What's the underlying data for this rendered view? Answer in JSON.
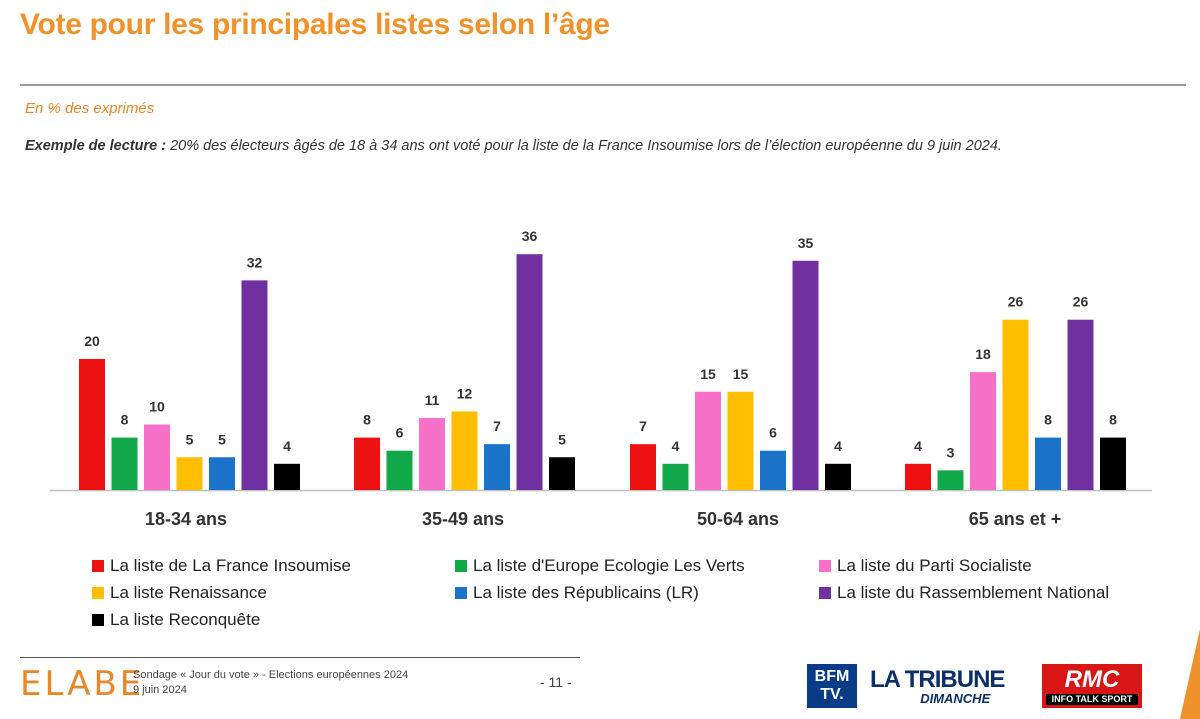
{
  "header": {
    "title": "Vote pour les principales listes selon l’âge",
    "subtitle": "En % des exprimés",
    "reading_label": "Exemple de lecture :",
    "reading_text": "20% des électeurs âgés de 18 à 34 ans ont voté pour la liste de la France Insoumise lors de l’élection européenne du 9 juin 2024."
  },
  "chart_data": {
    "type": "bar",
    "title": "Vote pour les principales listes selon l’âge",
    "subtitle": "En % des exprimés",
    "categories": [
      "18-34 ans",
      "35-49 ans",
      "50-64 ans",
      "65 ans et +"
    ],
    "series": [
      {
        "name": "La liste de La France Insoumise",
        "color": "#ee1111",
        "values": [
          20,
          8,
          7,
          4
        ]
      },
      {
        "name": "La liste d'Europe Ecologie Les Verts",
        "color": "#11a84a",
        "values": [
          8,
          6,
          4,
          3
        ]
      },
      {
        "name": "La liste du Parti Socialiste",
        "color": "#f771c8",
        "values": [
          10,
          11,
          15,
          18
        ]
      },
      {
        "name": "La liste Renaissance",
        "color": "#ffbf00",
        "values": [
          5,
          12,
          15,
          26
        ]
      },
      {
        "name": "La liste des Républicains (LR)",
        "color": "#1a73c9",
        "values": [
          5,
          7,
          6,
          8
        ]
      },
      {
        "name": "La liste du Rassemblement National",
        "color": "#7030a0",
        "values": [
          32,
          36,
          35,
          26
        ]
      },
      {
        "name": "La liste Reconquête",
        "color": "#000000",
        "values": [
          4,
          5,
          4,
          8
        ]
      }
    ],
    "ylim": [
      0,
      40
    ],
    "grid": false,
    "legend": "bottom"
  },
  "footer": {
    "brand": "ELABE",
    "line1": "Sondage « Jour du vote » - Elections européennes 2024",
    "line2": "9 juin 2024",
    "page": "- 11 -",
    "logos": {
      "bfm_1": "BFM",
      "bfm_2": "TV.",
      "tribune_1": "LA TRIBUNE",
      "tribune_2": "DIMANCHE",
      "rmc_1": "RMC",
      "rmc_2": "INFO TALK SPORT"
    }
  }
}
